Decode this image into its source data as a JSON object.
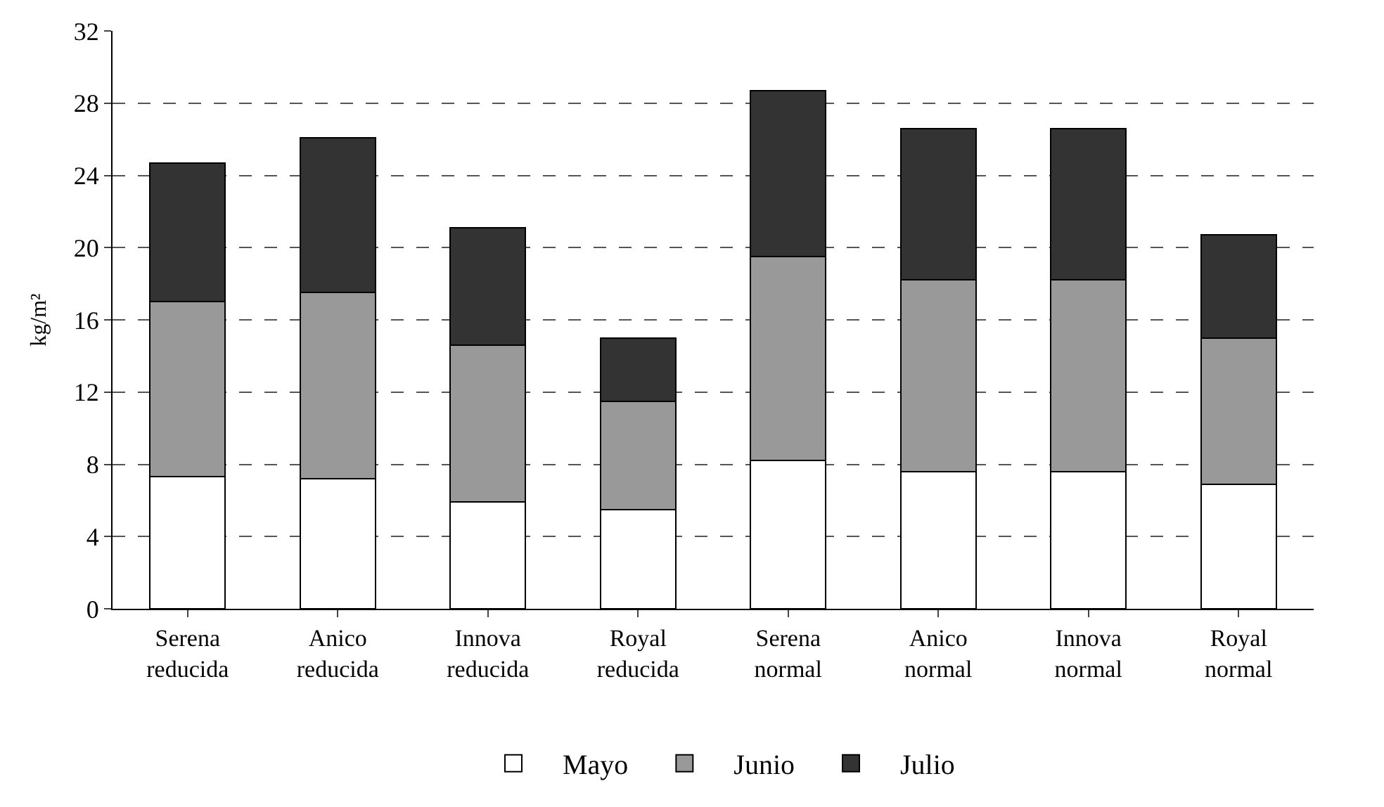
{
  "chart_data": {
    "type": "bar",
    "stacked": true,
    "ylabel": "kg/m²",
    "categories": [
      "Serena reducida",
      "Anico reducida",
      "Innova reducida",
      "Royal reducida",
      "Serena normal",
      "Anico normal",
      "Innova normal",
      "Royal normal"
    ],
    "series": [
      {
        "name": "Mayo",
        "color": "#ffffff",
        "values": [
          7.3,
          7.2,
          5.9,
          5.5,
          8.2,
          7.6,
          7.6,
          6.9
        ]
      },
      {
        "name": "Junio",
        "color": "#999999",
        "values": [
          9.7,
          10.3,
          8.7,
          6.0,
          11.3,
          10.6,
          10.6,
          8.1
        ]
      },
      {
        "name": "Julio",
        "color": "#333333",
        "values": [
          7.7,
          8.6,
          6.5,
          3.5,
          9.2,
          8.4,
          8.4,
          5.7
        ]
      }
    ],
    "ylim": [
      0,
      32
    ],
    "yticks": [
      0,
      4,
      8,
      12,
      16,
      20,
      24,
      28,
      32
    ],
    "grid": "y",
    "legend": "bottom"
  }
}
